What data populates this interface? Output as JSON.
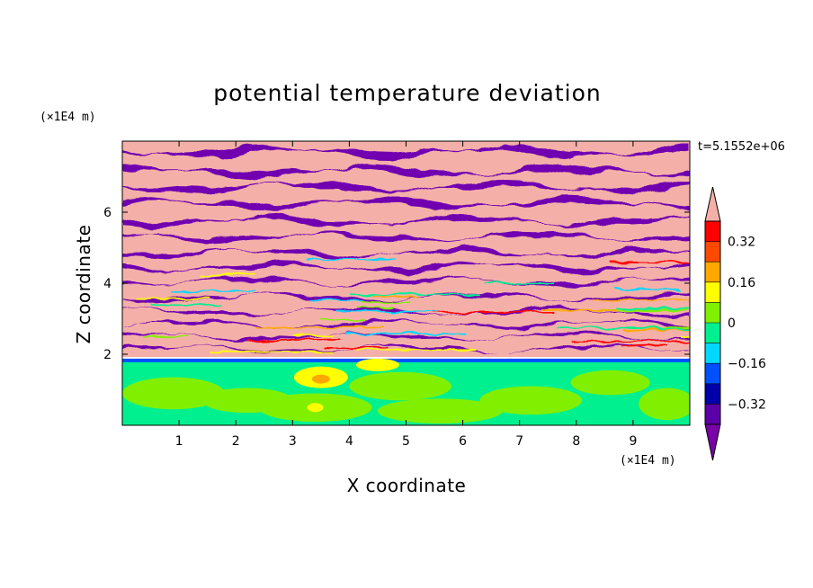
{
  "chart_data": {
    "type": "heatmap",
    "title": "potential temperature deviation",
    "xlabel": "X coordinate",
    "ylabel": "Z coordinate",
    "x_unit": "(×1E4 m)",
    "y_unit": "(×1E4 m)",
    "time_label": "t=5.1552e+06",
    "xlim": [
      0,
      10
    ],
    "ylim": [
      0,
      8
    ],
    "x_ticks": [
      1,
      2,
      3,
      4,
      5,
      6,
      7,
      8,
      9
    ],
    "y_ticks": [
      2,
      4,
      6
    ],
    "colorbar": {
      "levels": [
        -0.4,
        -0.32,
        -0.24,
        -0.16,
        -0.08,
        0,
        0.08,
        0.16,
        0.24,
        0.32,
        0.4
      ],
      "colors": [
        "#5b00a8",
        "#0000a8",
        "#0050ff",
        "#00d8ff",
        "#00f090",
        "#80f000",
        "#ffff00",
        "#ffa800",
        "#ff4800",
        "#ff0000"
      ],
      "over_color": "#f4b0a8",
      "under_color": "#7a00a8",
      "tick_labels": [
        "0.32",
        "0.16",
        "0",
        "−0.16",
        "−0.32"
      ],
      "tick_values": [
        0.32,
        0.16,
        0,
        -0.16,
        -0.32
      ]
    },
    "regions": [
      {
        "description": "lower layer z 0–1.8, values about 0 to 0.16 (green / light green)",
        "z_range": [
          0,
          1.8
        ]
      },
      {
        "description": "upper layer z 1.8–8, alternating layers above 0.4 (pink) and below −0.4 (purple)",
        "z_range": [
          1.8,
          8
        ]
      }
    ]
  }
}
